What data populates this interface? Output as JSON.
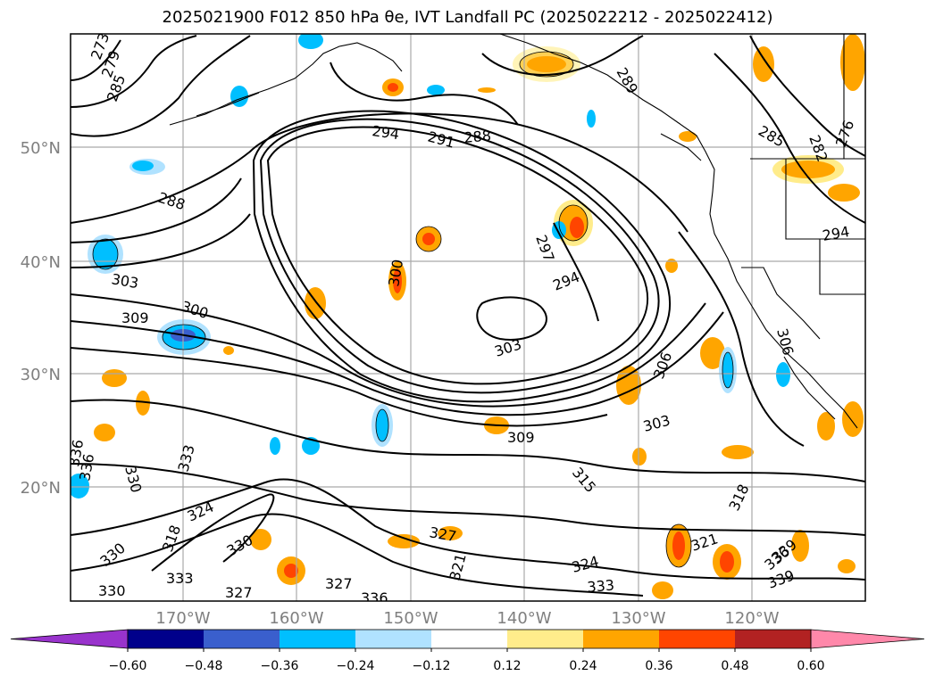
{
  "title": "2025021900 F012 850 hPa θe, IVT Landfall PC (2025022212 - 2025022412)",
  "map": {
    "lat_labels": [
      "50°N",
      "40°N",
      "30°N",
      "20°N"
    ],
    "lon_labels": [
      "170°W",
      "160°W",
      "150°W",
      "140°W",
      "130°W",
      "120°W"
    ]
  },
  "contour_labels": [
    "273",
    "279",
    "285",
    "294",
    "291",
    "288",
    "288",
    "289",
    "282",
    "276",
    "285",
    "294",
    "303",
    "309",
    "300",
    "300",
    "294",
    "297",
    "303",
    "306",
    "306",
    "303",
    "309",
    "315",
    "318",
    "321",
    "324",
    "333",
    "336",
    "339",
    "327",
    "321",
    "336",
    "330",
    "333",
    "336",
    "339",
    "330",
    "318",
    "324",
    "327",
    "330",
    "327",
    "333",
    "336",
    "330"
  ],
  "colorbar": {
    "ticks": [
      "−0.60",
      "−0.48",
      "−0.36",
      "−0.24",
      "−0.12",
      "0.12",
      "0.24",
      "0.36",
      "0.48",
      "0.60"
    ],
    "colors": [
      "#9933cc",
      "#00008b",
      "#3a5fcd",
      "#00bfff",
      "#b0e2ff",
      "#ffffff",
      "#ffec8b",
      "#ffa500",
      "#ff4500",
      "#b22222",
      "#ff88aa"
    ]
  }
}
